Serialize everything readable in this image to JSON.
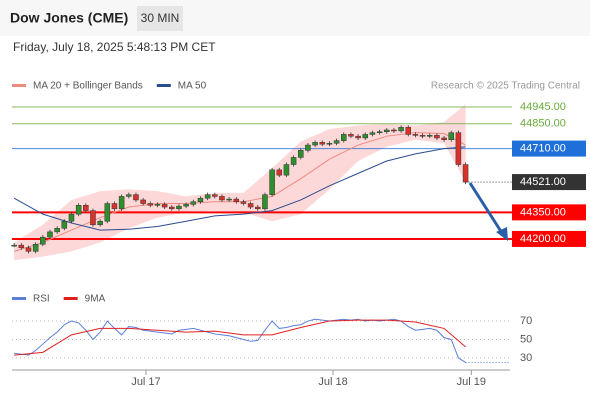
{
  "header": {
    "title": "Dow Jones (CME)",
    "timeframe": "30 MIN",
    "datetime": "Friday, July 18, 2025 5:48:13 PM CET"
  },
  "watermark": "Research © 2025 Trading Central",
  "chart_data": [
    {
      "type": "candlestick",
      "x": [
        0,
        1,
        2,
        3,
        4,
        5,
        6,
        7,
        8,
        9,
        10,
        11,
        12,
        13,
        14,
        15,
        16,
        17,
        18,
        19,
        20,
        21,
        22,
        23,
        24,
        25,
        26,
        27,
        28,
        29,
        30,
        31,
        32,
        33,
        34,
        35,
        36,
        37,
        38,
        39,
        40,
        41,
        42,
        43,
        44,
        45,
        46,
        47,
        48,
        49,
        50,
        51,
        52,
        53,
        54,
        55,
        56,
        57,
        58,
        59,
        60,
        61,
        62,
        63
      ],
      "close": [
        44165,
        44150,
        44130,
        44170,
        44210,
        44240,
        44260,
        44300,
        44340,
        44390,
        44360,
        44280,
        44300,
        44400,
        44370,
        44440,
        44450,
        44420,
        44400,
        44390,
        44395,
        44380,
        44370,
        44385,
        44395,
        44410,
        44430,
        44450,
        44440,
        44420,
        44425,
        44410,
        44400,
        44380,
        44370,
        44450,
        44590,
        44560,
        44620,
        44660,
        44700,
        44730,
        44745,
        44735,
        44740,
        44755,
        44790,
        44780,
        44770,
        44790,
        44800,
        44805,
        44815,
        44810,
        44830,
        44790,
        44785,
        44780,
        44785,
        44770,
        44760,
        44800,
        44620,
        44521
      ],
      "up_color": "#2f8f2f",
      "down_color": "#d8322c",
      "overlays": {
        "x": [
          0,
          4,
          8,
          12,
          16,
          20,
          24,
          28,
          32,
          36,
          40,
          44,
          48,
          52,
          56,
          60,
          63
        ],
        "series": [
          {
            "name": "MA 20 + Bollinger Bands",
            "color": "#f08a80",
            "band_color": "#fdd8d8",
            "values": [
              44130,
              44180,
              44250,
              44320,
              44380,
              44400,
              44400,
              44410,
              44410,
              44440,
              44540,
              44650,
              44730,
              44780,
              44800,
              44795,
              44730
            ],
            "upper": [
              44180,
              44280,
              44420,
              44470,
              44480,
              44470,
              44440,
              44460,
              44460,
              44600,
              44750,
              44820,
              44840,
              44850,
              44840,
              44860,
              44960
            ],
            "lower": [
              44080,
              44100,
              44130,
              44180,
              44260,
              44320,
              44350,
              44360,
              44350,
              44300,
              44340,
              44480,
              44640,
              44720,
              44760,
              44740,
              44520
            ]
          },
          {
            "name": "MA 50",
            "color": "#2a4d8f",
            "values": [
              44430,
              44340,
              44290,
              44250,
              44255,
              44270,
              44300,
              44330,
              44340,
              44360,
              44420,
              44500,
              44570,
              44640,
              44680,
              44710,
              44720
            ]
          }
        ]
      },
      "levels": [
        {
          "value": 44945,
          "label": "44945.00",
          "color": "#6aaa3a",
          "style": "text"
        },
        {
          "value": 44850,
          "label": "44850.00",
          "color": "#6aaa3a",
          "style": "text"
        },
        {
          "value": 44710,
          "label": "44710.00",
          "color": "#1f6fd8",
          "style": "box"
        },
        {
          "value": 44521,
          "label": "44521.00",
          "color": "#333333",
          "style": "current"
        },
        {
          "value": 44350,
          "label": "44350.00",
          "color": "#ff0000",
          "style": "box"
        },
        {
          "value": 44200,
          "label": "44200.00",
          "color": "#ff0000",
          "style": "box"
        }
      ],
      "xlim": [
        -0.3,
        69.2
      ],
      "ylim": [
        43940,
        45052
      ],
      "xticks": [
        {
          "value": 18.4,
          "label": "Jul 17"
        },
        {
          "value": 44.5,
          "label": "Jul 18"
        },
        {
          "value": 63.8,
          "label": "Jul 19"
        }
      ]
    },
    {
      "type": "line",
      "xlim": [
        -0.3,
        69.2
      ],
      "ylim": [
        19,
        82
      ],
      "yticks": [
        30,
        50,
        70
      ],
      "series": [
        {
          "name": "RSI",
          "color": "#5b7fd6",
          "x": [
            0,
            1,
            2,
            3,
            4,
            5,
            6,
            7,
            8,
            9,
            10,
            11,
            12,
            13,
            14,
            15,
            16,
            17,
            18,
            19,
            20,
            21,
            22,
            23,
            24,
            25,
            26,
            27,
            28,
            29,
            30,
            31,
            32,
            33,
            34,
            35,
            36,
            37,
            38,
            39,
            40,
            41,
            42,
            43,
            44,
            45,
            46,
            47,
            48,
            49,
            50,
            51,
            52,
            53,
            54,
            55,
            56,
            57,
            58,
            59,
            60,
            61,
            62,
            63
          ],
          "values": [
            35,
            34,
            33,
            38,
            45,
            52,
            58,
            66,
            70,
            68,
            60,
            50,
            58,
            70,
            62,
            55,
            64,
            63,
            60,
            59,
            58,
            57,
            56,
            60,
            61,
            62,
            60,
            58,
            56,
            55,
            54,
            52,
            50,
            48,
            49,
            60,
            70,
            62,
            63,
            65,
            66,
            70,
            72,
            71,
            70,
            71,
            72,
            71,
            72,
            70,
            71,
            70,
            71,
            72,
            70,
            64,
            60,
            61,
            62,
            60,
            52,
            50,
            30,
            25
          ]
        },
        {
          "name": "9MA",
          "color": "#e02020",
          "x": [
            0,
            4,
            8,
            12,
            16,
            20,
            24,
            28,
            32,
            36,
            40,
            44,
            48,
            52,
            56,
            60,
            63
          ],
          "values": [
            33,
            36,
            55,
            62,
            62,
            60,
            58,
            59,
            55,
            55,
            63,
            70,
            71,
            71,
            69,
            62,
            42
          ]
        }
      ]
    }
  ]
}
